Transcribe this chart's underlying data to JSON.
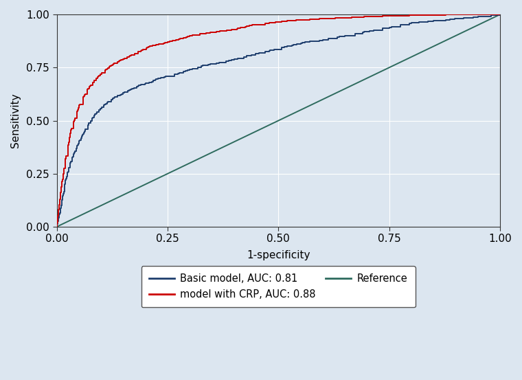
{
  "title": "",
  "xlabel": "1-specificity",
  "ylabel": "Sensitivity",
  "xlim": [
    0,
    1
  ],
  "ylim": [
    0,
    1
  ],
  "xticks": [
    0.0,
    0.25,
    0.5,
    0.75,
    1.0
  ],
  "yticks": [
    0.0,
    0.25,
    0.5,
    0.75,
    1.0
  ],
  "background_color": "#dce6f0",
  "plot_background_color": "#dce6f0",
  "grid_color": "#ffffff",
  "basic_model_color": "#1f3f6e",
  "crp_model_color": "#cc0000",
  "reference_color": "#2e6b5e",
  "legend_label_basic": "Basic model, AUC: 0.81",
  "legend_label_crp": "model with CRP, AUC: 0.88",
  "legend_label_ref": "Reference",
  "line_width": 1.4,
  "basic_key_fpr": [
    0,
    0.01,
    0.02,
    0.03,
    0.05,
    0.07,
    0.09,
    0.11,
    0.13,
    0.15,
    0.17,
    0.19,
    0.21,
    0.23,
    0.25,
    0.27,
    0.3,
    0.33,
    0.36,
    0.4,
    0.44,
    0.48,
    0.52,
    0.56,
    0.6,
    0.65,
    0.7,
    0.75,
    0.8,
    0.85,
    0.9,
    0.95,
    1.0
  ],
  "basic_key_tpr": [
    0,
    0.1,
    0.22,
    0.3,
    0.4,
    0.48,
    0.54,
    0.58,
    0.61,
    0.63,
    0.65,
    0.67,
    0.68,
    0.7,
    0.71,
    0.72,
    0.74,
    0.76,
    0.77,
    0.79,
    0.81,
    0.83,
    0.85,
    0.87,
    0.88,
    0.9,
    0.92,
    0.94,
    0.96,
    0.97,
    0.98,
    0.99,
    1.0
  ],
  "crp_key_fpr": [
    0,
    0.01,
    0.02,
    0.03,
    0.05,
    0.07,
    0.09,
    0.11,
    0.13,
    0.15,
    0.17,
    0.19,
    0.21,
    0.23,
    0.25,
    0.27,
    0.3,
    0.33,
    0.36,
    0.4,
    0.44,
    0.48,
    0.52,
    0.56,
    0.6,
    0.65,
    0.7,
    0.75,
    0.8,
    0.85,
    0.9,
    0.95,
    1.0
  ],
  "crp_key_tpr": [
    0,
    0.18,
    0.32,
    0.44,
    0.57,
    0.65,
    0.7,
    0.74,
    0.77,
    0.79,
    0.81,
    0.83,
    0.85,
    0.86,
    0.87,
    0.88,
    0.9,
    0.91,
    0.92,
    0.93,
    0.95,
    0.96,
    0.97,
    0.975,
    0.98,
    0.985,
    0.99,
    0.993,
    0.996,
    0.998,
    0.999,
    0.9995,
    1.0
  ]
}
